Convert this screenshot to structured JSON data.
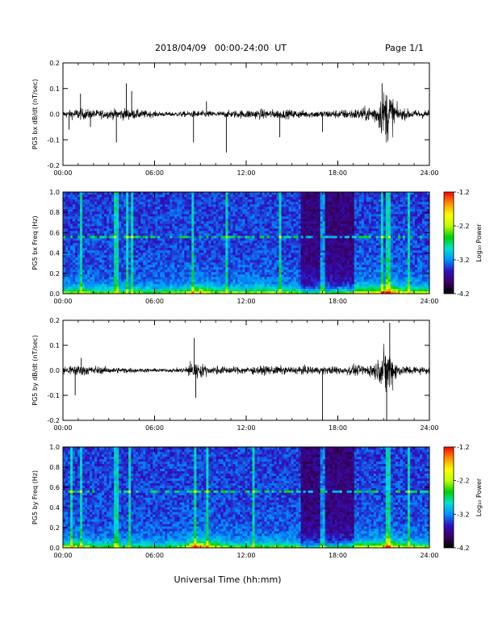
{
  "header": {
    "date_range": "2018/04/09   00:00-24:00  UT",
    "page": "Page 1/1"
  },
  "xaxis_label": "Universal Time (hh:mm)",
  "colors": {
    "trace": "#000000",
    "spectrogram_background": "#2a0a4a",
    "colorbar_stops": [
      "#000000",
      "#3a0060",
      "#3010c0",
      "#0090ff",
      "#00e0d0",
      "#00d000",
      "#c0ff00",
      "#ffff00",
      "#ff9000",
      "#ff0000"
    ]
  },
  "chart_data": [
    {
      "type": "line",
      "ylabel": "PG5 bx dB/dt (nT/sec)",
      "xlim": [
        0,
        24
      ],
      "ylim": [
        -0.2,
        0.2
      ],
      "x_ticks": [
        "00:00",
        "06:00",
        "12:00",
        "18:00",
        "24:00"
      ],
      "y_ticks": [
        "0.2",
        "0.1",
        "0.0",
        "-0.1",
        "-0.2"
      ],
      "noise_envelope": {
        "hours": [
          0,
          1,
          2,
          3,
          4,
          5,
          6,
          7,
          8,
          9,
          10,
          11,
          12,
          13,
          14,
          15,
          16,
          17,
          18,
          19,
          20,
          20.5,
          21,
          21.3,
          21.6,
          22,
          23,
          24
        ],
        "amplitude": [
          0.02,
          0.04,
          0.03,
          0.03,
          0.04,
          0.03,
          0.02,
          0.015,
          0.02,
          0.025,
          0.02,
          0.025,
          0.03,
          0.035,
          0.03,
          0.03,
          0.025,
          0.025,
          0.03,
          0.035,
          0.05,
          0.07,
          0.16,
          0.2,
          0.12,
          0.04,
          0.03,
          0.03
        ]
      },
      "spikes": [
        {
          "t": 0.4,
          "v": -0.06
        },
        {
          "t": 1.15,
          "v": 0.08
        },
        {
          "t": 1.8,
          "v": -0.05
        },
        {
          "t": 3.5,
          "v": -0.11
        },
        {
          "t": 4.15,
          "v": 0.12
        },
        {
          "t": 4.5,
          "v": 0.09
        },
        {
          "t": 8.55,
          "v": -0.11
        },
        {
          "t": 9.4,
          "v": 0.05
        },
        {
          "t": 10.7,
          "v": -0.15
        },
        {
          "t": 14.2,
          "v": -0.09
        },
        {
          "t": 17.0,
          "v": -0.07
        },
        {
          "t": 20.9,
          "v": 0.12
        }
      ]
    },
    {
      "type": "heatmap",
      "ylabel": "PG5 bx Freq (Hz)",
      "xlim": [
        0,
        24
      ],
      "ylim": [
        0.0,
        1.0
      ],
      "x_ticks": [
        "00:00",
        "06:00",
        "12:00",
        "18:00",
        "24:00"
      ],
      "y_ticks": [
        "1.0",
        "0.8",
        "0.6",
        "0.4",
        "0.2",
        "0.0"
      ],
      "colorbar": {
        "label": "Log₁₀ Power",
        "range": [
          -4.2,
          -1.2
        ],
        "ticks": [
          "-1.2",
          "-2.2",
          "-3.2",
          "-4.2"
        ]
      },
      "activity": {
        "hours": [
          0,
          1,
          2,
          4,
          6,
          8,
          9,
          10,
          12,
          13.5,
          15,
          17,
          18,
          19,
          20,
          21,
          21.3,
          22,
          24
        ],
        "level": [
          0.5,
          0.6,
          0.45,
          0.5,
          0.45,
          0.55,
          0.8,
          0.5,
          0.55,
          0.6,
          0.5,
          0.55,
          0.6,
          0.65,
          0.7,
          0.85,
          1.0,
          0.7,
          0.55
        ]
      },
      "vertical_streaks_hours": [
        1.15,
        3.5,
        4.2,
        4.5,
        8.5,
        10.7,
        14.2,
        17.0,
        20.9,
        21.3,
        22.6
      ],
      "line_frequency_hz": 0.55,
      "quiet_region_hours": [
        15.5,
        19.0
      ]
    },
    {
      "type": "line",
      "ylabel": "PG5 by dB/dt (nT/sec)",
      "xlim": [
        0,
        24
      ],
      "ylim": [
        -0.2,
        0.2
      ],
      "x_ticks": [
        "00:00",
        "06:00",
        "12:00",
        "18:00",
        "24:00"
      ],
      "y_ticks": [
        "0.2",
        "0.1",
        "0.0",
        "-0.1",
        "-0.2"
      ],
      "noise_envelope": {
        "hours": [
          0,
          1,
          2,
          3,
          4,
          5,
          6,
          7,
          8,
          8.5,
          9,
          9.5,
          10,
          11,
          12,
          13,
          14,
          15,
          16,
          17,
          18,
          19,
          20,
          20.8,
          21.2,
          21.5,
          22,
          23,
          24
        ],
        "amplitude": [
          0.03,
          0.04,
          0.03,
          0.02,
          0.02,
          0.015,
          0.012,
          0.012,
          0.02,
          0.07,
          0.05,
          0.03,
          0.03,
          0.025,
          0.025,
          0.03,
          0.03,
          0.025,
          0.03,
          0.025,
          0.03,
          0.035,
          0.04,
          0.08,
          0.2,
          0.12,
          0.04,
          0.03,
          0.025
        ]
      },
      "spikes": [
        {
          "t": 0.8,
          "v": -0.1
        },
        {
          "t": 1.2,
          "v": 0.05
        },
        {
          "t": 8.7,
          "v": -0.11
        },
        {
          "t": 8.6,
          "v": 0.13
        },
        {
          "t": 17.0,
          "v": -0.2
        },
        {
          "t": 21.2,
          "v": -0.2
        },
        {
          "t": 21.4,
          "v": 0.19
        }
      ]
    },
    {
      "type": "heatmap",
      "ylabel": "PG5 by Freq (Hz)",
      "xlim": [
        0,
        24
      ],
      "ylim": [
        0.0,
        1.0
      ],
      "x_ticks": [
        "00:00",
        "06:00",
        "12:00",
        "18:00",
        "24:00"
      ],
      "y_ticks": [
        "1.0",
        "0.8",
        "0.6",
        "0.4",
        "0.2",
        "0.0"
      ],
      "colorbar": {
        "label": "Log₁₀ Power",
        "range": [
          -4.2,
          -1.2
        ],
        "ticks": [
          "-1.2",
          "-2.2",
          "-3.2",
          "-4.2"
        ]
      },
      "activity": {
        "hours": [
          0,
          1,
          2,
          4,
          6,
          8,
          8.6,
          9.5,
          10.5,
          12,
          13.5,
          15,
          17,
          18,
          19,
          20,
          21,
          21.3,
          22,
          24
        ],
        "level": [
          0.55,
          0.6,
          0.45,
          0.45,
          0.35,
          0.5,
          1.0,
          0.8,
          0.5,
          0.45,
          0.5,
          0.45,
          0.5,
          0.55,
          0.6,
          0.6,
          0.75,
          0.95,
          0.6,
          0.5
        ]
      },
      "vertical_streaks_hours": [
        0.5,
        1.2,
        3.5,
        4.4,
        8.6,
        9.5,
        12.5,
        17.0,
        21.3,
        22.6
      ],
      "line_frequency_hz": 0.55,
      "quiet_region_hours": [
        15.5,
        19.0
      ]
    }
  ]
}
